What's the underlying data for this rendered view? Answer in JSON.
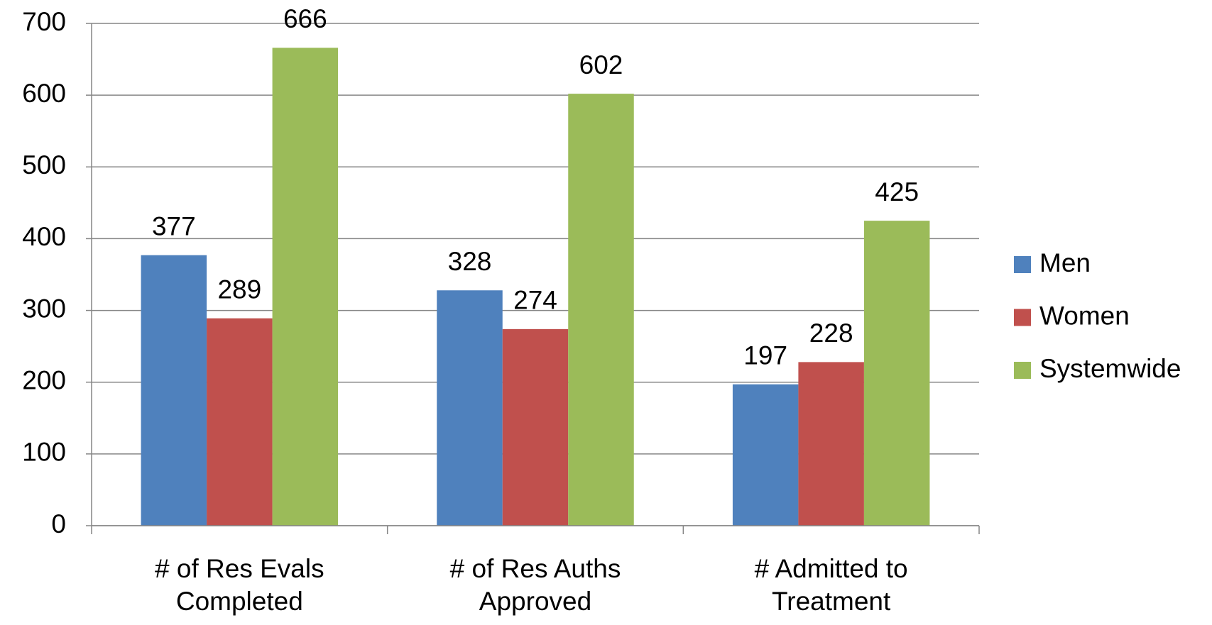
{
  "chart_data": {
    "type": "bar",
    "categories": [
      "# of Res Evals Completed",
      "# of Res Auths Approved",
      "# Admitted to Treatment"
    ],
    "series": [
      {
        "name": "Men",
        "color": "#4f81bd",
        "values": [
          377,
          328,
          197
        ]
      },
      {
        "name": "Women",
        "color": "#c0504d",
        "values": [
          289,
          274,
          228
        ]
      },
      {
        "name": "Systemwide",
        "color": "#9bbb59",
        "values": [
          666,
          602,
          425
        ]
      }
    ],
    "ylim": [
      0,
      700
    ],
    "yticks": [
      0,
      100,
      200,
      300,
      400,
      500,
      600,
      700
    ],
    "grid": true,
    "legend": "right"
  }
}
